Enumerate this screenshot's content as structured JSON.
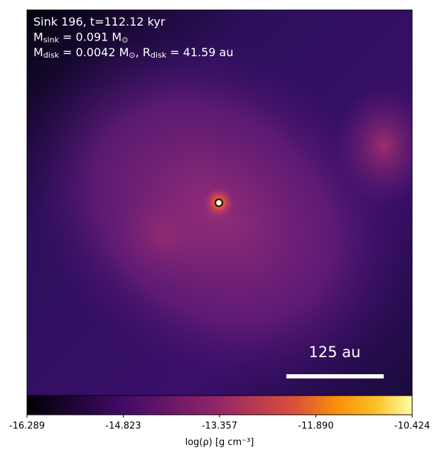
{
  "chart_data": {
    "type": "image",
    "annotations": [
      [
        {
          "text": "Sink 196, t=112.12 kyr"
        }
      ],
      [
        {
          "text": "M"
        },
        {
          "text": "sink",
          "sub": true
        },
        {
          "text": " = 0.091 M"
        },
        {
          "text": "⊙",
          "sub": true
        }
      ],
      [
        {
          "text": "M"
        },
        {
          "text": "disk",
          "sub": true
        },
        {
          "text": " = 0.0042 M"
        },
        {
          "text": "⊙",
          "sub": true
        },
        {
          "text": ", R"
        },
        {
          "text": "disk",
          "sub": true
        },
        {
          "text": " = 41.59 au"
        }
      ]
    ],
    "scale_bar_label": "125 au",
    "colorbar": {
      "label": "log(ρ) [g cm⁻³]",
      "cmap": "magma",
      "clim": [
        -16.289,
        -10.424
      ],
      "ticks": [
        -16.289,
        -14.823,
        -13.357,
        {
          "value": -11.89,
          "label": "-11.890"
        },
        -10.424
      ]
    }
  }
}
